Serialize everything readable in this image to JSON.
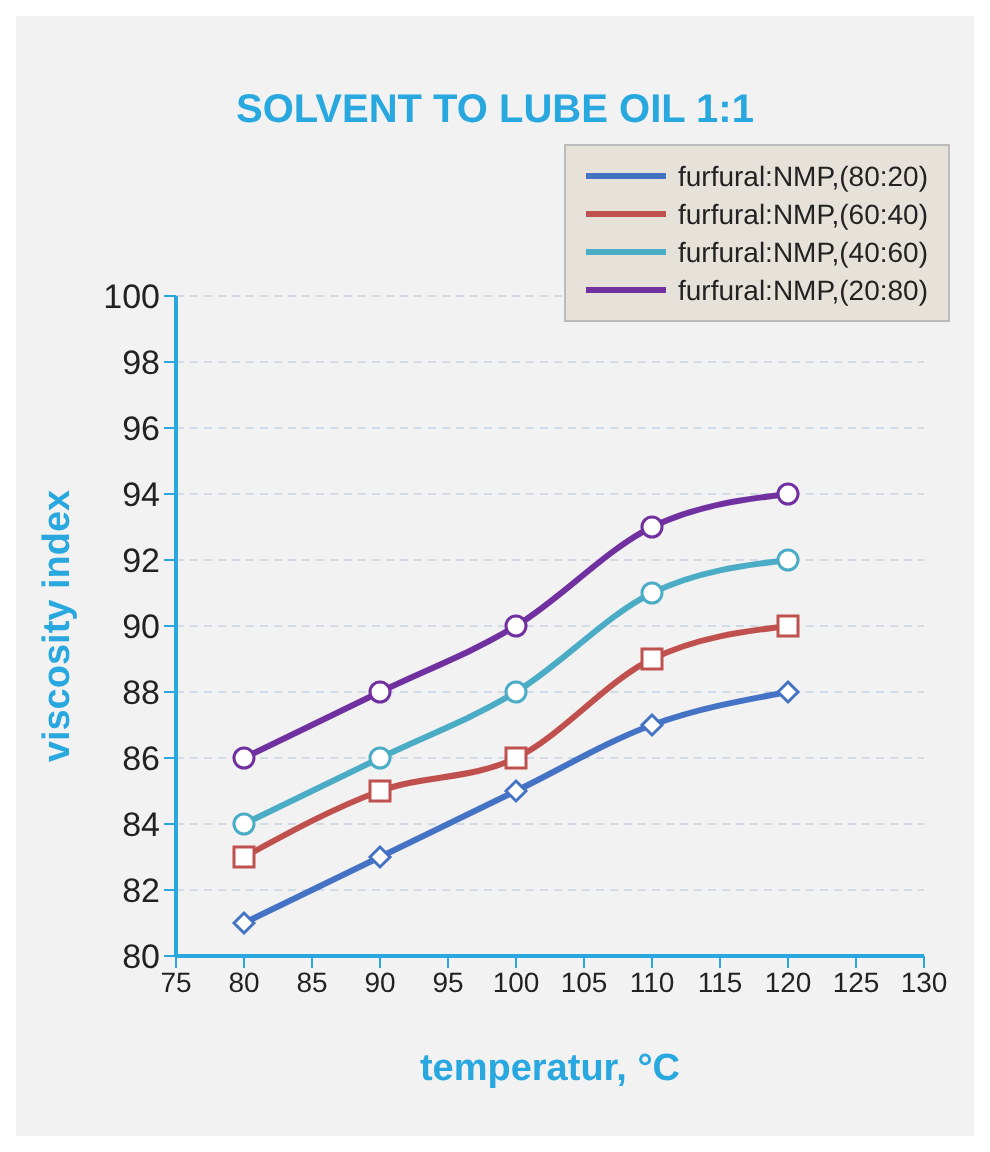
{
  "chart_data": {
    "type": "line",
    "title": "SOLVENT TO LUBE OIL 1:1",
    "xlabel": "temperatur, °C",
    "ylabel": "viscosity index",
    "x": [
      80,
      90,
      100,
      110,
      120
    ],
    "series": [
      {
        "name": "furfural:NMP,(80:20)",
        "color": "#4472c4",
        "marker": "diamond",
        "values": [
          81,
          83,
          85,
          87,
          88
        ]
      },
      {
        "name": "furfural:NMP,(60:40)",
        "color": "#c0504d",
        "marker": "square",
        "values": [
          83,
          85,
          86,
          89,
          90
        ]
      },
      {
        "name": "furfural:NMP,(40:60)",
        "color": "#4bacc6",
        "marker": "circle",
        "values": [
          84,
          86,
          88,
          91,
          92
        ]
      },
      {
        "name": "furfural:NMP,(20:80)",
        "color": "#7030a0",
        "marker": "circle",
        "values": [
          86,
          88,
          90,
          93,
          94
        ]
      }
    ],
    "xlim": [
      75,
      130
    ],
    "xticks": [
      75,
      80,
      85,
      90,
      95,
      100,
      105,
      110,
      115,
      120,
      125,
      130
    ],
    "ylim": [
      80,
      100
    ],
    "yticks": [
      80,
      82,
      84,
      86,
      88,
      90,
      92,
      94,
      96,
      98,
      100
    ],
    "grid": "y",
    "legend": "top right"
  }
}
